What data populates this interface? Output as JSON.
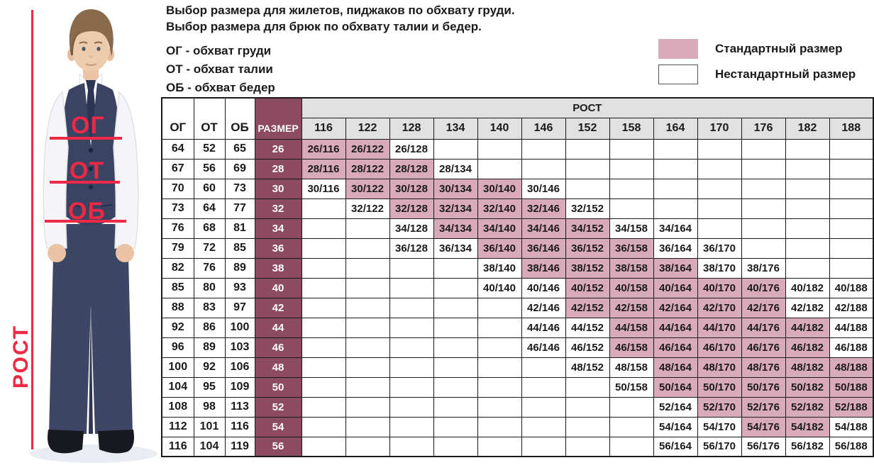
{
  "page": {
    "title_lines": [
      "Выбор размера для жилетов, пиджаков по обхвату груди.",
      "Выбор размера для брюк по обхвату талии и бедер."
    ],
    "abbreviations": [
      "ОГ - обхват груди",
      "ОТ - обхват талии",
      "ОБ - обхват бедер"
    ]
  },
  "legend": {
    "standard_label": "Стандартный размер",
    "nonstandard_label": "Нестандартный размер"
  },
  "photo_annotations": {
    "chest_label": "ОГ",
    "waist_label": "ОТ",
    "hips_label": "ОБ",
    "height_label": "РОСТ"
  },
  "colors": {
    "standard_cell": "#d9abba",
    "size_column": "#8c4b61",
    "header_gray": "#e1e1e1",
    "annotation_red": "#ee2946",
    "table_border": "#1a1a1a"
  },
  "chart_data": {
    "type": "table",
    "title": "Таблица размеров: жилеты, пиджаки, брюки (размер / рост)",
    "header": {
      "og": "ОГ",
      "ot": "ОТ",
      "ob": "ОБ",
      "size": "РАЗМЕР",
      "rost": "РОСТ"
    },
    "heights": [
      116,
      122,
      128,
      134,
      140,
      146,
      152,
      158,
      164,
      170,
      176,
      182,
      188
    ],
    "legend": {
      "standard": "Стандартный размер",
      "nonstandard": "Нестандартный размер"
    },
    "rows": [
      {
        "og": 64,
        "ot": 52,
        "ob": 65,
        "size": 26,
        "cells": [
          [
            "26/116",
            1
          ],
          [
            "26/122",
            1
          ],
          [
            "26/128",
            0
          ],
          null,
          null,
          null,
          null,
          null,
          null,
          null,
          null,
          null,
          null
        ]
      },
      {
        "og": 67,
        "ot": 56,
        "ob": 69,
        "size": 28,
        "cells": [
          [
            "28/116",
            1
          ],
          [
            "28/122",
            1
          ],
          [
            "28/128",
            1
          ],
          [
            "28/134",
            0
          ],
          null,
          null,
          null,
          null,
          null,
          null,
          null,
          null,
          null
        ]
      },
      {
        "og": 70,
        "ot": 60,
        "ob": 73,
        "size": 30,
        "cells": [
          [
            "30/116",
            0
          ],
          [
            "30/122",
            1
          ],
          [
            "30/128",
            1
          ],
          [
            "30/134",
            1
          ],
          [
            "30/140",
            1
          ],
          [
            "30/146",
            0
          ],
          null,
          null,
          null,
          null,
          null,
          null,
          null
        ]
      },
      {
        "og": 73,
        "ot": 64,
        "ob": 77,
        "size": 32,
        "cells": [
          null,
          [
            "32/122",
            0
          ],
          [
            "32/128",
            1
          ],
          [
            "32/134",
            1
          ],
          [
            "32/140",
            1
          ],
          [
            "32/146",
            1
          ],
          [
            "32/152",
            0
          ],
          null,
          null,
          null,
          null,
          null,
          null
        ]
      },
      {
        "og": 76,
        "ot": 68,
        "ob": 81,
        "size": 34,
        "cells": [
          null,
          null,
          [
            "34/128",
            0
          ],
          [
            "34/134",
            1
          ],
          [
            "34/140",
            1
          ],
          [
            "34/146",
            1
          ],
          [
            "34/152",
            1
          ],
          [
            "34/158",
            0
          ],
          [
            "34/164",
            0
          ],
          null,
          null,
          null,
          null
        ]
      },
      {
        "og": 79,
        "ot": 72,
        "ob": 85,
        "size": 36,
        "cells": [
          null,
          null,
          [
            "36/128",
            0
          ],
          [
            "36/134",
            0
          ],
          [
            "36/140",
            1
          ],
          [
            "36/146",
            1
          ],
          [
            "36/152",
            1
          ],
          [
            "36/158",
            1
          ],
          [
            "36/164",
            0
          ],
          [
            "36/170",
            0
          ],
          null,
          null,
          null
        ]
      },
      {
        "og": 82,
        "ot": 76,
        "ob": 89,
        "size": 38,
        "cells": [
          null,
          null,
          null,
          null,
          [
            "38/140",
            0
          ],
          [
            "38/146",
            1
          ],
          [
            "38/152",
            1
          ],
          [
            "38/158",
            1
          ],
          [
            "38/164",
            1
          ],
          [
            "38/170",
            0
          ],
          [
            "38/176",
            0
          ],
          null,
          null
        ]
      },
      {
        "og": 85,
        "ot": 80,
        "ob": 93,
        "size": 40,
        "cells": [
          null,
          null,
          null,
          null,
          [
            "40/140",
            0
          ],
          [
            "40/146",
            0
          ],
          [
            "40/152",
            1
          ],
          [
            "40/158",
            1
          ],
          [
            "40/164",
            1
          ],
          [
            "40/170",
            1
          ],
          [
            "40/176",
            1
          ],
          [
            "40/182",
            0
          ],
          [
            "40/188",
            0
          ]
        ]
      },
      {
        "og": 88,
        "ot": 83,
        "ob": 97,
        "size": 42,
        "cells": [
          null,
          null,
          null,
          null,
          null,
          [
            "42/146",
            0
          ],
          [
            "42/152",
            1
          ],
          [
            "42/158",
            1
          ],
          [
            "42/164",
            1
          ],
          [
            "42/170",
            1
          ],
          [
            "42/176",
            1
          ],
          [
            "42/182",
            0
          ],
          [
            "42/188",
            0
          ]
        ]
      },
      {
        "og": 92,
        "ot": 86,
        "ob": 100,
        "size": 44,
        "cells": [
          null,
          null,
          null,
          null,
          null,
          [
            "44/146",
            0
          ],
          [
            "44/152",
            0
          ],
          [
            "44/158",
            1
          ],
          [
            "44/164",
            1
          ],
          [
            "44/170",
            1
          ],
          [
            "44/176",
            1
          ],
          [
            "44/182",
            1
          ],
          [
            "44/188",
            0
          ]
        ]
      },
      {
        "og": 96,
        "ot": 89,
        "ob": 103,
        "size": 46,
        "cells": [
          null,
          null,
          null,
          null,
          null,
          [
            "46/146",
            0
          ],
          [
            "46/152",
            0
          ],
          [
            "46/158",
            1
          ],
          [
            "46/164",
            1
          ],
          [
            "46/170",
            1
          ],
          [
            "46/176",
            1
          ],
          [
            "46/182",
            1
          ],
          [
            "46/188",
            0
          ]
        ]
      },
      {
        "og": 100,
        "ot": 92,
        "ob": 106,
        "size": 48,
        "cells": [
          null,
          null,
          null,
          null,
          null,
          null,
          [
            "48/152",
            0
          ],
          [
            "48/158",
            0
          ],
          [
            "48/164",
            1
          ],
          [
            "48/170",
            1
          ],
          [
            "48/176",
            1
          ],
          [
            "48/182",
            1
          ],
          [
            "48/188",
            1
          ]
        ]
      },
      {
        "og": 104,
        "ot": 95,
        "ob": 109,
        "size": 50,
        "cells": [
          null,
          null,
          null,
          null,
          null,
          null,
          null,
          [
            "50/158",
            0
          ],
          [
            "50/164",
            1
          ],
          [
            "50/170",
            1
          ],
          [
            "50/176",
            1
          ],
          [
            "50/182",
            1
          ],
          [
            "50/188",
            1
          ]
        ]
      },
      {
        "og": 108,
        "ot": 98,
        "ob": 113,
        "size": 52,
        "cells": [
          null,
          null,
          null,
          null,
          null,
          null,
          null,
          null,
          [
            "52/164",
            0
          ],
          [
            "52/170",
            1
          ],
          [
            "52/176",
            1
          ],
          [
            "52/182",
            1
          ],
          [
            "52/188",
            1
          ]
        ]
      },
      {
        "og": 112,
        "ot": 101,
        "ob": 116,
        "size": 54,
        "cells": [
          null,
          null,
          null,
          null,
          null,
          null,
          null,
          null,
          [
            "54/164",
            0
          ],
          [
            "54/170",
            0
          ],
          [
            "54/176",
            1
          ],
          [
            "54/182",
            1
          ],
          [
            "54/188",
            0
          ]
        ]
      },
      {
        "og": 116,
        "ot": 104,
        "ob": 119,
        "size": 56,
        "cells": [
          null,
          null,
          null,
          null,
          null,
          null,
          null,
          null,
          [
            "56/164",
            0
          ],
          [
            "56/170",
            0
          ],
          [
            "56/176",
            0
          ],
          [
            "56/182",
            0
          ],
          [
            "56/188",
            0
          ]
        ]
      }
    ]
  }
}
